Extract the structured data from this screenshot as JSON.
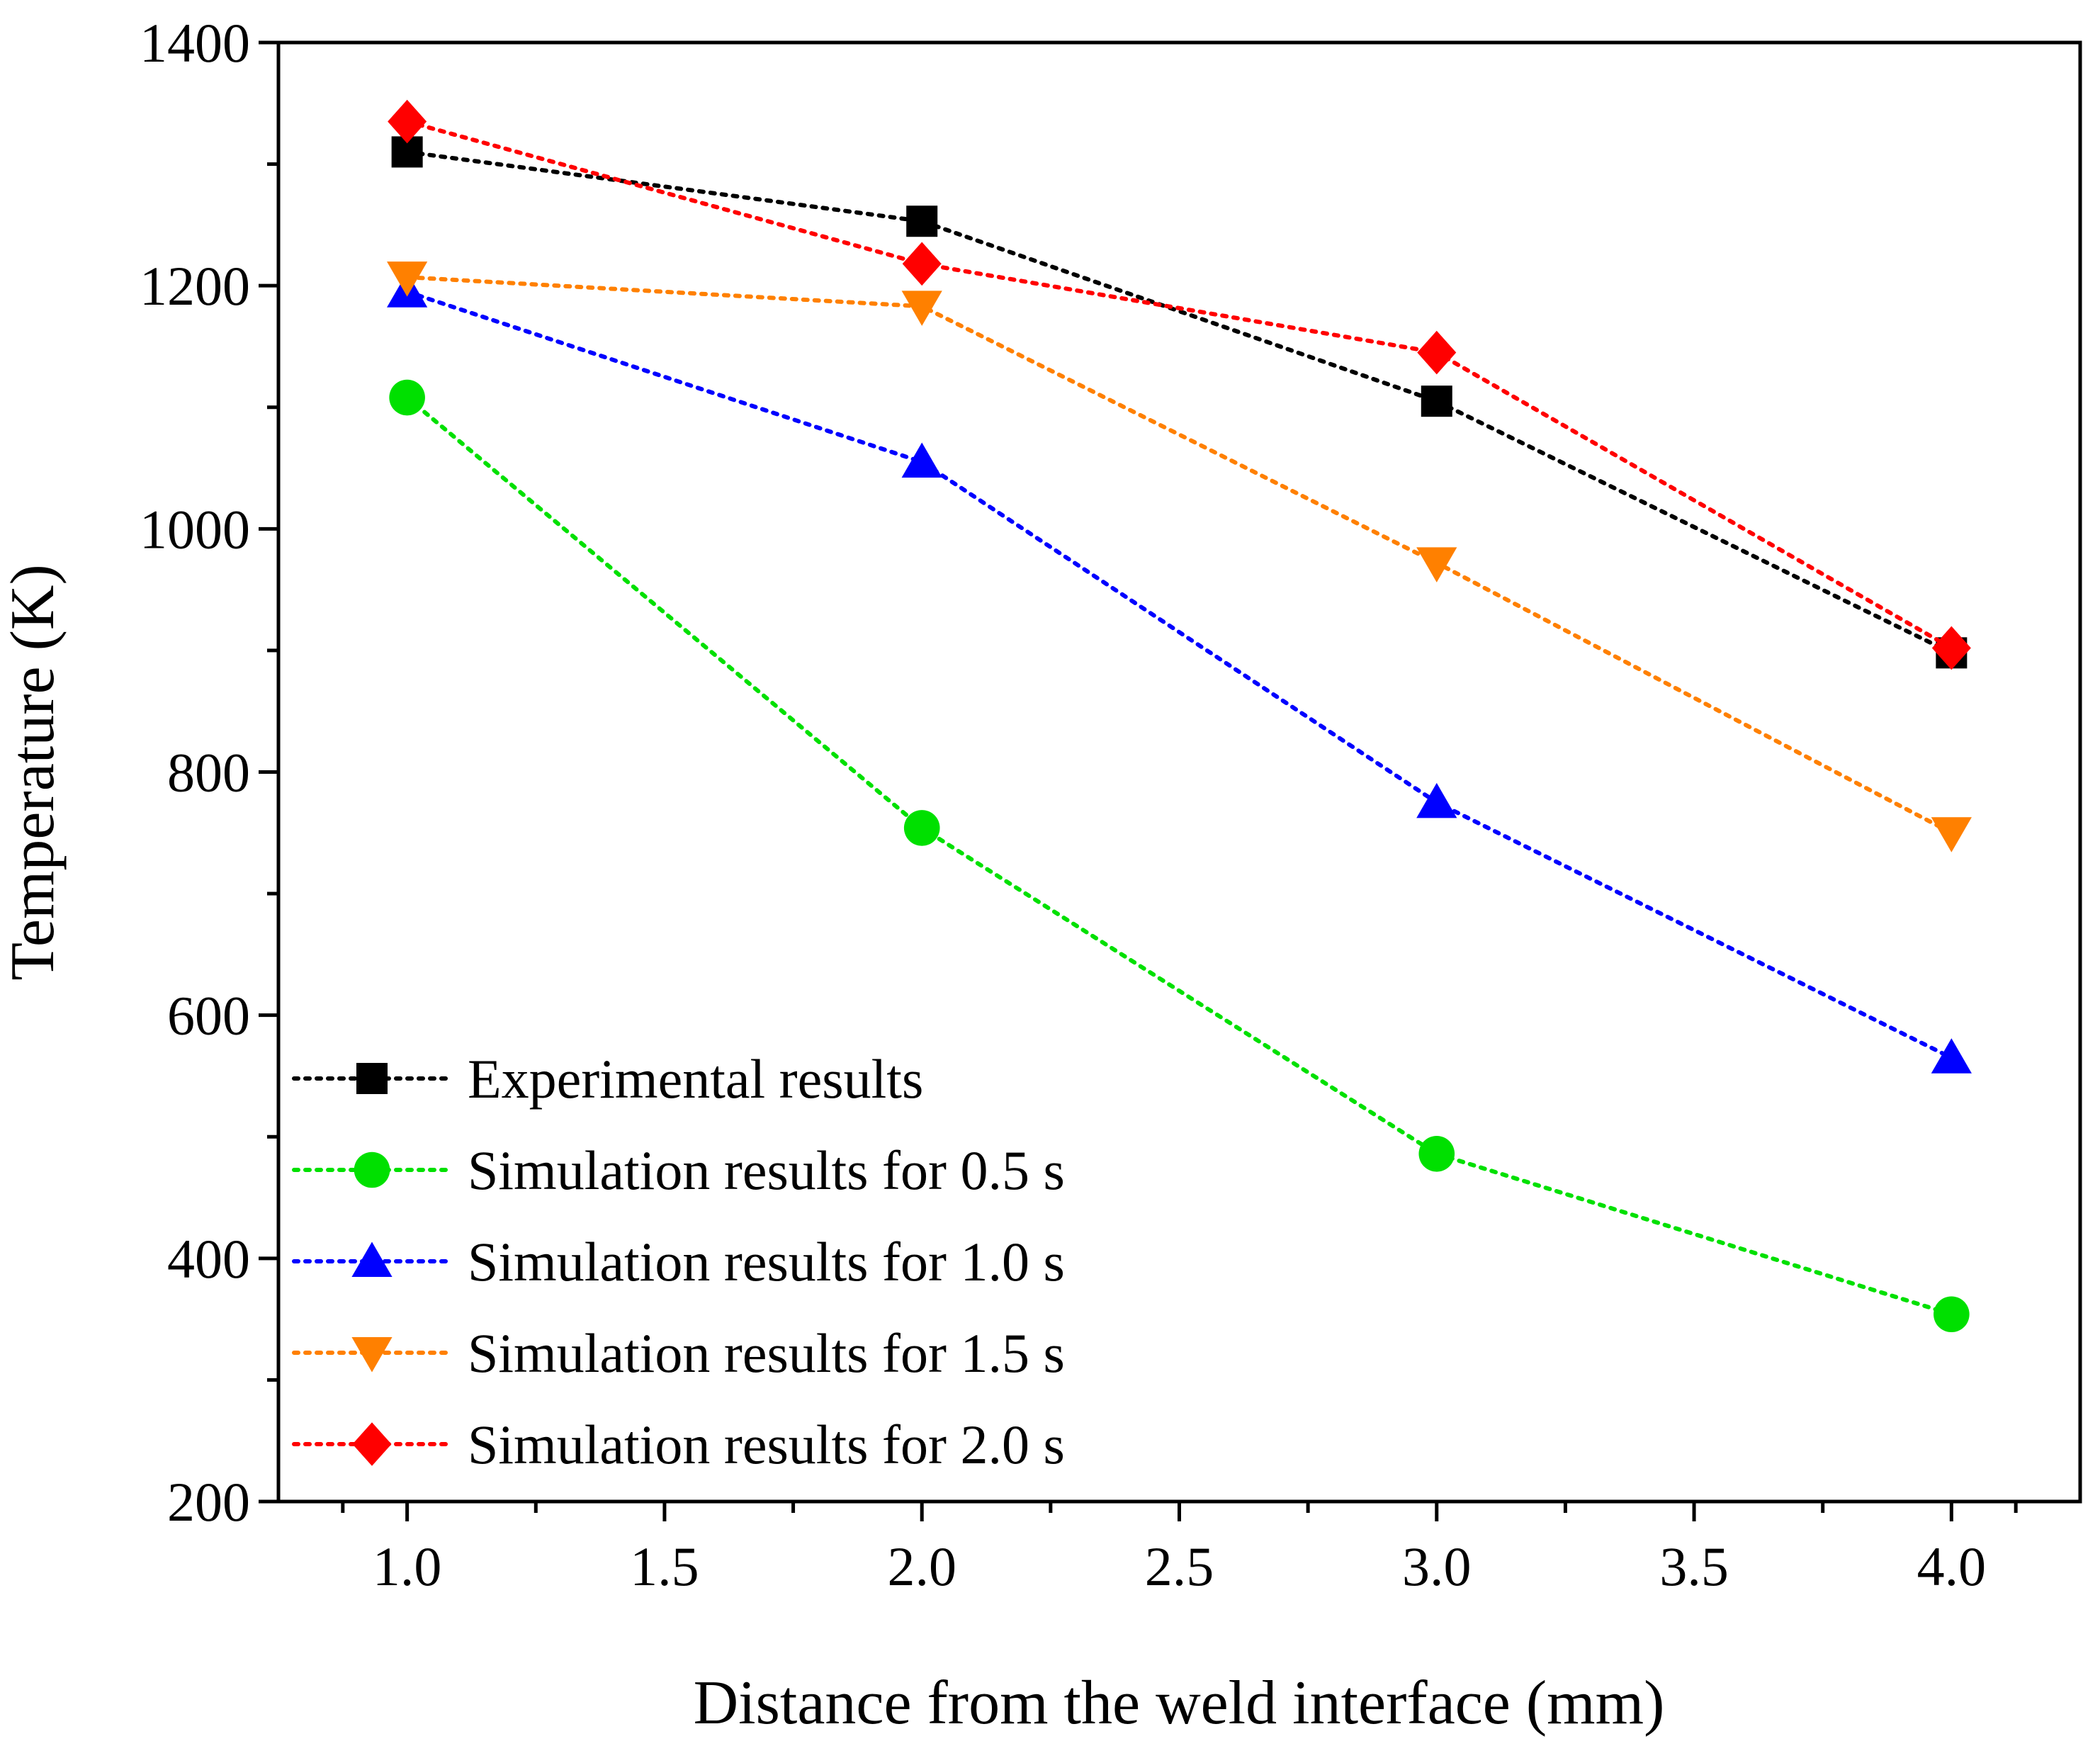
{
  "chart_data": {
    "type": "line",
    "title": "",
    "xlabel": "Distance from the weld interface (mm)",
    "ylabel": "Temperature (K)",
    "xlim": [
      0.75,
      4.25
    ],
    "ylim": [
      200,
      1400
    ],
    "x_ticks": [
      1.0,
      1.5,
      2.0,
      2.5,
      3.0,
      3.5,
      4.0
    ],
    "x_tick_labels": [
      "1.0",
      "1.5",
      "2.0",
      "2.5",
      "3.0",
      "3.5",
      "4.0"
    ],
    "y_ticks": [
      200,
      400,
      600,
      800,
      1000,
      1200,
      1400
    ],
    "y_tick_labels": [
      "200",
      "400",
      "600",
      "800",
      "1000",
      "1200",
      "1400"
    ],
    "grid": false,
    "legend_position": "bottom-left",
    "x": [
      1.0,
      2.0,
      3.0,
      4.0
    ],
    "series": [
      {
        "name": "Experimental results",
        "values": [
          1310,
          1253,
          1105,
          898
        ],
        "color": "#000000",
        "marker": "square"
      },
      {
        "name": "Simulation results for 0.5 s",
        "values": [
          1108,
          754,
          486,
          354
        ],
        "color": "#00e000",
        "marker": "circle"
      },
      {
        "name": "Simulation results for 1.0 s",
        "values": [
          1195,
          1055,
          775,
          565
        ],
        "color": "#0000ff",
        "marker": "triangle-up"
      },
      {
        "name": "Simulation results for 1.5 s",
        "values": [
          1207,
          1183,
          972,
          750
        ],
        "color": "#ff8000",
        "marker": "triangle-down"
      },
      {
        "name": "Simulation results for 2.0 s",
        "values": [
          1335,
          1218,
          1145,
          902
        ],
        "color": "#ff0000",
        "marker": "diamond"
      }
    ]
  }
}
